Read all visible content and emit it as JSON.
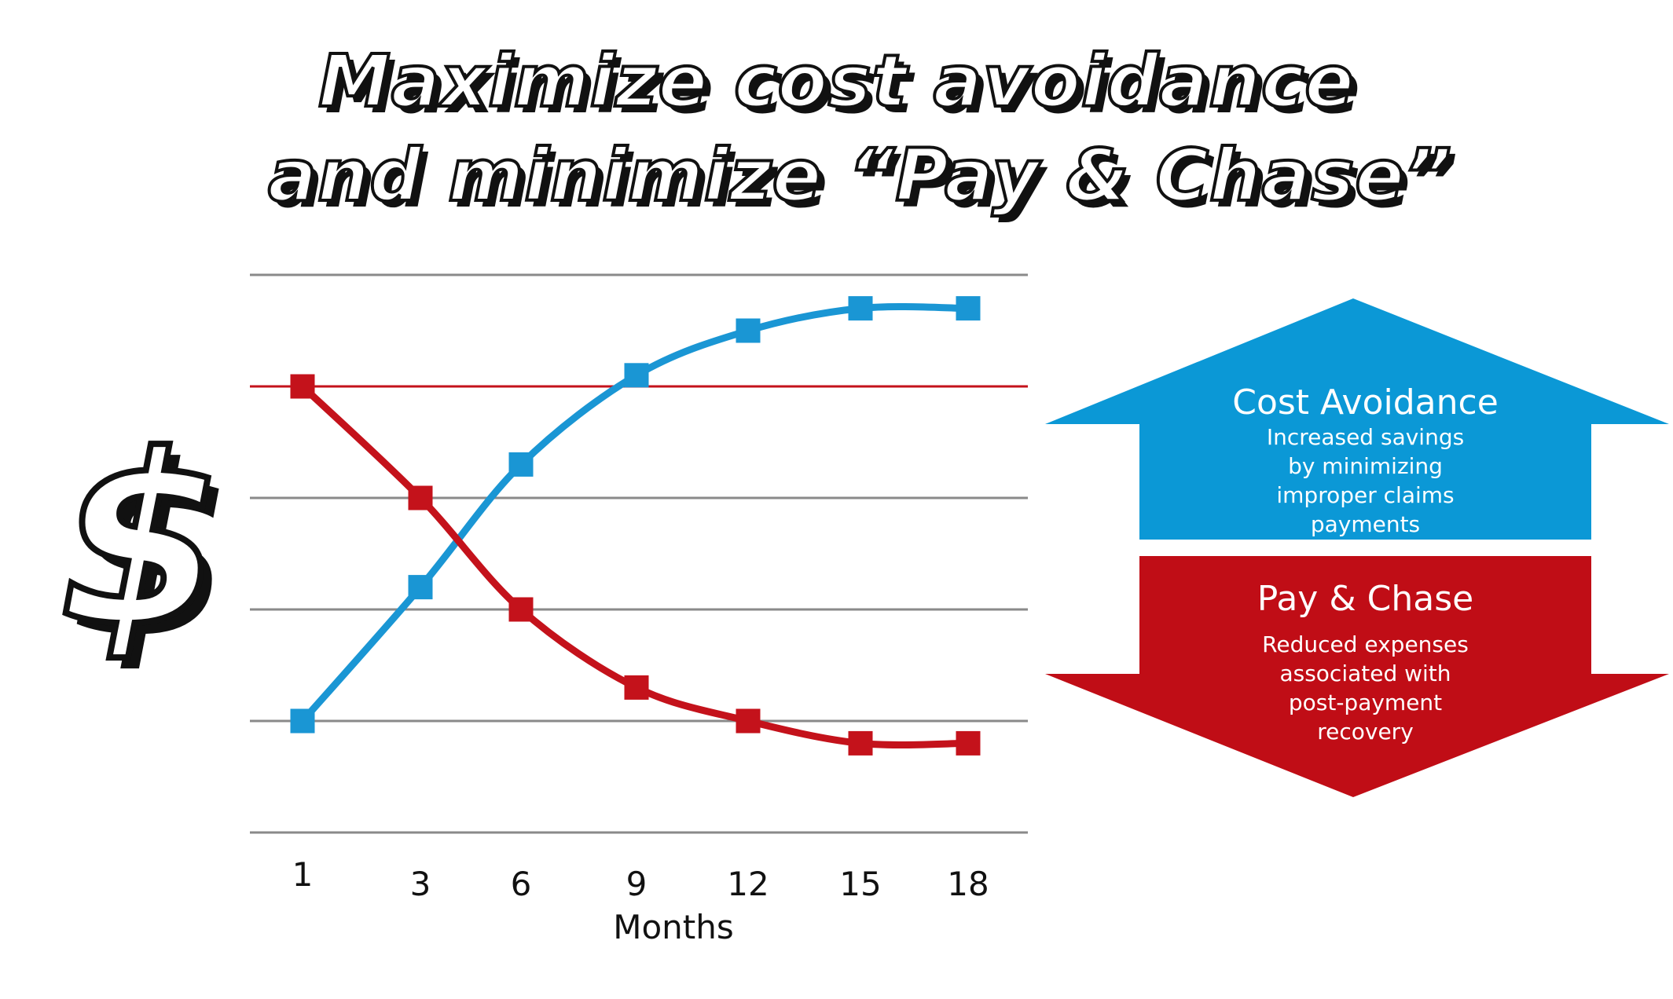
{
  "title": {
    "line1": "Maximize cost avoidance",
    "line2": "and minimize “Pay & Chase”"
  },
  "y_axis_symbol": "$",
  "arrows": {
    "cost_avoidance": {
      "title": "Cost Avoidance",
      "description": [
        "Increased savings",
        "by minimizing",
        "improper claims",
        "payments"
      ],
      "color": "#0b98d6"
    },
    "pay_and_chase": {
      "title": "Pay & Chase",
      "description": [
        "Reduced expenses",
        "associated with",
        "post-payment",
        "recovery"
      ],
      "color": "#c00d16"
    }
  },
  "chart_data": {
    "type": "line",
    "xlabel": "Months",
    "ylabel": "",
    "categories": [
      "1",
      "3",
      "6",
      "9",
      "12",
      "15",
      "18"
    ],
    "ylim": [
      0,
      5
    ],
    "grid": true,
    "series": [
      {
        "values": [
          1.0,
          2.2,
          3.3,
          4.1,
          4.5,
          4.7,
          4.7
        ],
        "color": "#1a96d4"
      },
      {
        "values": [
          4.0,
          3.0,
          2.0,
          1.3,
          1.0,
          0.8,
          0.8
        ],
        "color": "#c4121b"
      }
    ],
    "reference_line": {
      "value": 4.0,
      "color": "#c4121b"
    }
  }
}
